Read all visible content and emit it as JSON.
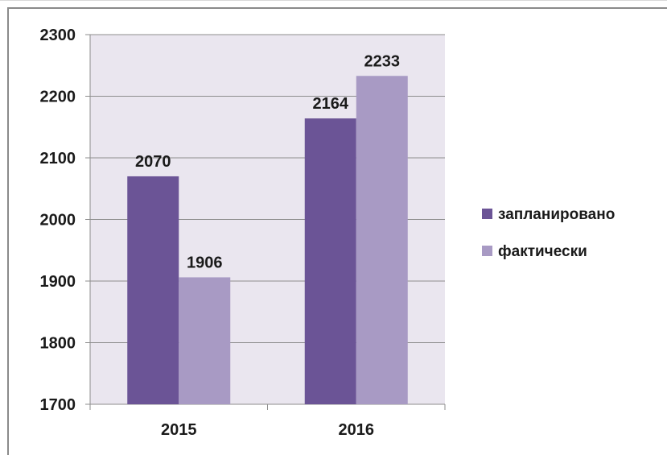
{
  "chart_data": {
    "type": "bar",
    "categories": [
      "2015",
      "2016"
    ],
    "series": [
      {
        "name": "запланировано",
        "color": "#6b5496",
        "values": [
          2070,
          2164
        ]
      },
      {
        "name": "фактически",
        "color": "#a89ac4",
        "values": [
          1906,
          2233
        ]
      }
    ],
    "ylim": [
      1700,
      2300
    ],
    "yticks": [
      "1700",
      "1800",
      "1900",
      "2000",
      "2100",
      "2200",
      "2300"
    ],
    "grid": true,
    "plot_background": "#eae6ef",
    "legend_position": "right"
  }
}
